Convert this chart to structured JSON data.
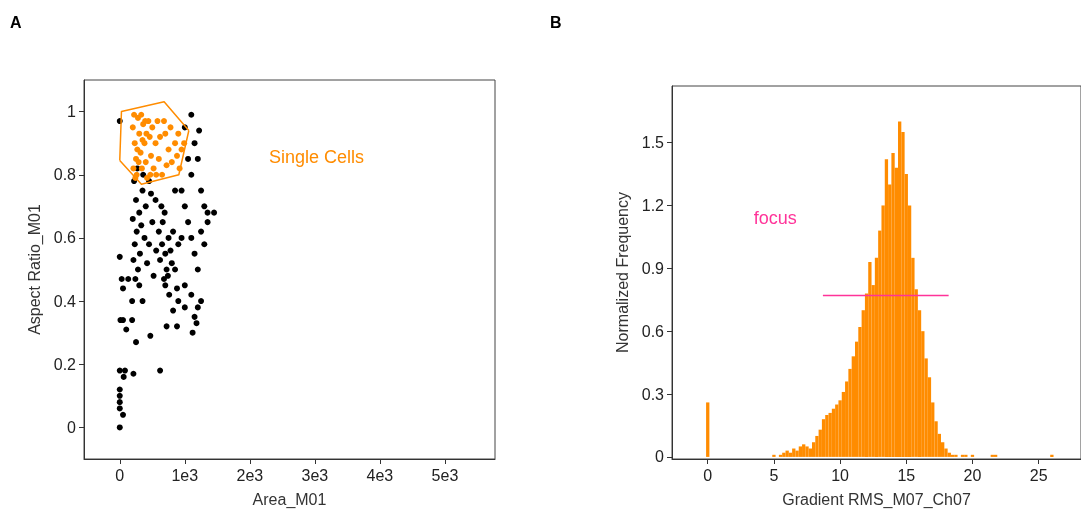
{
  "chart_data": [
    {
      "type": "scatter",
      "title": "A",
      "xlabel": "Area_M01",
      "ylabel": "Aspect Ratio_M01",
      "xlim": [
        -550,
        5770
      ],
      "ylim": [
        -0.1,
        1.1
      ],
      "xticks": [
        0,
        {
          "value": 1000,
          "label": "1e3"
        },
        {
          "value": 2000,
          "label": "2e3"
        },
        {
          "value": 3000,
          "label": "3e3"
        },
        {
          "value": 4000,
          "label": "4e3"
        },
        {
          "value": 5000,
          "label": "5e3"
        }
      ],
      "yticks": [
        0,
        0.2,
        0.4,
        0.6,
        0.8,
        1
      ],
      "marker": "circle",
      "annotations": [
        "Single Cells"
      ],
      "series": [
        {
          "color": "#000000",
          "x": [
            220,
            250,
            300,
            260,
            230,
            310,
            280,
            240,
            350,
            400,
            330,
            380,
            420,
            450,
            200,
            270,
            360,
            480,
            300,
            210,
            600,
            650,
            700,
            720,
            680,
            750,
            800,
            620,
            660,
            700,
            780,
            740,
            820,
            850,
            640,
            900,
            560,
            880,
            760,
            690,
            950,
            1000,
            1050,
            1100,
            1150,
            1200,
            1250,
            1300,
            1100,
            1200,
            1150,
            1050,
            1250,
            1300,
            1350,
            1000,
            1100,
            1200,
            1150,
            1250,
            900,
            1000,
            1120,
            1180,
            1220,
            1100,
            1000,
            1350,
            1450,
            950,
            850,
            550,
            500,
            450,
            520,
            0,
            0,
            30,
            50,
            10,
            50,
            190,
            100,
            250,
            470,
            720,
            880,
            0,
            80,
            60,
            210,
            620,
            0,
            0,
            0,
            0,
            50,
            0,
            190,
            130,
            350,
            820
          ],
          "values": [
            0.78,
            0.72,
            0.68,
            0.62,
            0.58,
            0.55,
            0.5,
            0.47,
            0.75,
            0.7,
            0.64,
            0.6,
            0.52,
            0.78,
            0.66,
            0.82,
            0.8,
            0.74,
            0.45,
            0.53,
            0.62,
            0.58,
            0.55,
            0.5,
            0.47,
            0.6,
            0.52,
            0.53,
            0.65,
            0.45,
            0.56,
            0.48,
            0.62,
            0.5,
            0.7,
            0.58,
            0.56,
            0.44,
            0.42,
            0.68,
            0.75,
            0.7,
            0.65,
            0.6,
            0.55,
            0.5,
            0.62,
            0.7,
            0.8,
            0.85,
            0.9,
            0.85,
            0.75,
            0.58,
            0.68,
            0.45,
            0.42,
            0.38,
            0.35,
            0.4,
            0.4,
            0.38,
            0.3,
            0.33,
            0.94,
            0.99,
            0.95,
            0.65,
            0.68,
            0.6,
            0.75,
            0.72,
            0.65,
            0.58,
            0.48,
            0.97,
            0.54,
            0.47,
            0.44,
            0.34,
            0.34,
            0.34,
            0.31,
            0.27,
            0.29,
            0.32,
            0.32,
            0.18,
            0.18,
            0.16,
            0.17,
            0.18,
            0.12,
            0.1,
            0.08,
            0.06,
            0.04,
            0,
            0.4,
            0.47,
            0.4,
            0.37
          ]
        },
        {
          "color": "#ff8c00",
          "x": [
            200,
            230,
            250,
            260,
            280,
            300,
            320,
            340,
            360,
            380,
            400,
            420,
            440,
            460,
            480,
            210,
            220,
            270,
            330,
            390,
            290,
            350,
            410,
            240,
            500,
            550,
            600,
            650,
            700,
            750,
            800,
            850,
            900,
            950,
            520,
            580,
            680,
            780,
            880,
            620,
            720,
            920,
            560,
            470,
            990
          ],
          "values": [
            0.95,
            0.9,
            0.85,
            0.8,
            0.98,
            0.93,
            0.87,
            0.82,
            0.96,
            0.9,
            0.84,
            0.79,
            0.97,
            0.92,
            0.86,
            0.82,
            0.99,
            0.88,
            0.99,
            0.97,
            0.84,
            0.91,
            0.93,
            0.79,
            0.95,
            0.9,
            0.85,
            0.8,
            0.93,
            0.88,
            0.84,
            0.9,
            0.93,
            0.88,
            0.82,
            0.97,
            0.97,
            0.95,
            0.86,
            0.92,
            0.83,
            0.82,
            0.8,
            0.8,
            0.9
          ]
        },
        {
          "type": "line",
          "marker": "none",
          "color": "#ff8c00",
          "x": [
            0,
            26,
            682,
            1062
          ],
          "values": [
            0.845,
            1.0,
            1.031,
            0.94
          ]
        },
        {
          "type": "line",
          "marker": "none",
          "color": "#ff8c00",
          "x": [
            0,
            333,
            908,
            1062
          ],
          "values": [
            0.845,
            0.77,
            0.8,
            0.94
          ]
        }
      ]
    },
    {
      "type": "histogram",
      "title": "B",
      "xlabel": "Gradient RMS_M07_Ch07",
      "ylabel": "Normalized Frequency",
      "xlim": [
        -2.7,
        28.2
      ],
      "ylim": [
        -0.01,
        1.77
      ],
      "xticks": [
        0,
        5,
        10,
        15,
        20,
        25
      ],
      "yticks": [
        0,
        0.3,
        0.6,
        0.9,
        1.2,
        1.5
      ],
      "color": "#ff8c00",
      "annotations": [
        "focus"
      ],
      "bins": [
        -0.125,
        0.125,
        0.375,
        0.625,
        0.875,
        1.125,
        1.375,
        1.625,
        1.875,
        2.125,
        2.375,
        2.625,
        2.875,
        3.125,
        3.375,
        3.625,
        3.875,
        4.125,
        4.375,
        4.625,
        4.875,
        5.125,
        5.375,
        5.625,
        5.875,
        6.125,
        6.375,
        6.625,
        6.875,
        7.125,
        7.375,
        7.625,
        7.875,
        8.125,
        8.375,
        8.625,
        8.875,
        9.125,
        9.375,
        9.625,
        9.875,
        10.125,
        10.375,
        10.625,
        10.875,
        11.125,
        11.375,
        11.625,
        11.875,
        12.125,
        12.375,
        12.625,
        12.875,
        13.125,
        13.375,
        13.625,
        13.875,
        14.125,
        14.375,
        14.625,
        14.875,
        15.125,
        15.375,
        15.625,
        15.875,
        16.125,
        16.375,
        16.625,
        16.875,
        17.125,
        17.375,
        17.625,
        17.875,
        18.125,
        18.375,
        18.625,
        18.875,
        19.125,
        19.375,
        19.625,
        19.875,
        20.125,
        20.375,
        20.625,
        20.875,
        21.125,
        21.375,
        21.625,
        21.875,
        22.125,
        22.375,
        22.625,
        22.875,
        23.125,
        23.375,
        23.625,
        23.875,
        24.125,
        24.375,
        24.625,
        24.875,
        25.125,
        25.375,
        25.625,
        25.875,
        26.125,
        26.375
      ],
      "values": [
        0.26,
        0,
        0,
        0,
        0,
        0,
        0,
        0,
        0,
        0,
        0,
        0,
        0,
        0,
        0,
        0,
        0,
        0,
        0,
        0,
        0.01,
        0,
        0.01,
        0.02,
        0.03,
        0.02,
        0.04,
        0.03,
        0.05,
        0.06,
        0.05,
        0.04,
        0.07,
        0.1,
        0.13,
        0.18,
        0.2,
        0.21,
        0.23,
        0.25,
        0.27,
        0.31,
        0.36,
        0.42,
        0.48,
        0.55,
        0.62,
        0.7,
        0.78,
        0.93,
        0.82,
        0.95,
        1.08,
        1.2,
        1.42,
        1.3,
        1.45,
        1.38,
        1.6,
        1.55,
        1.35,
        1.2,
        0.95,
        0.8,
        0.7,
        0.6,
        0.47,
        0.38,
        0.26,
        0.17,
        0.11,
        0.07,
        0.04,
        0.02,
        0.01,
        0.01,
        0,
        0.01,
        0.01,
        0,
        0.01,
        0,
        0,
        0,
        0,
        0,
        0.01,
        0.01,
        0,
        0,
        0,
        0,
        0,
        0,
        0,
        0,
        0,
        0,
        0,
        0,
        0,
        0,
        0,
        0,
        0.01,
        0
      ],
      "series": [
        {
          "type": "line",
          "marker": "none",
          "color": "#ff3399",
          "x": [
            8.7,
            18.2
          ],
          "values": [
            0.77,
            0.77
          ]
        }
      ]
    }
  ]
}
